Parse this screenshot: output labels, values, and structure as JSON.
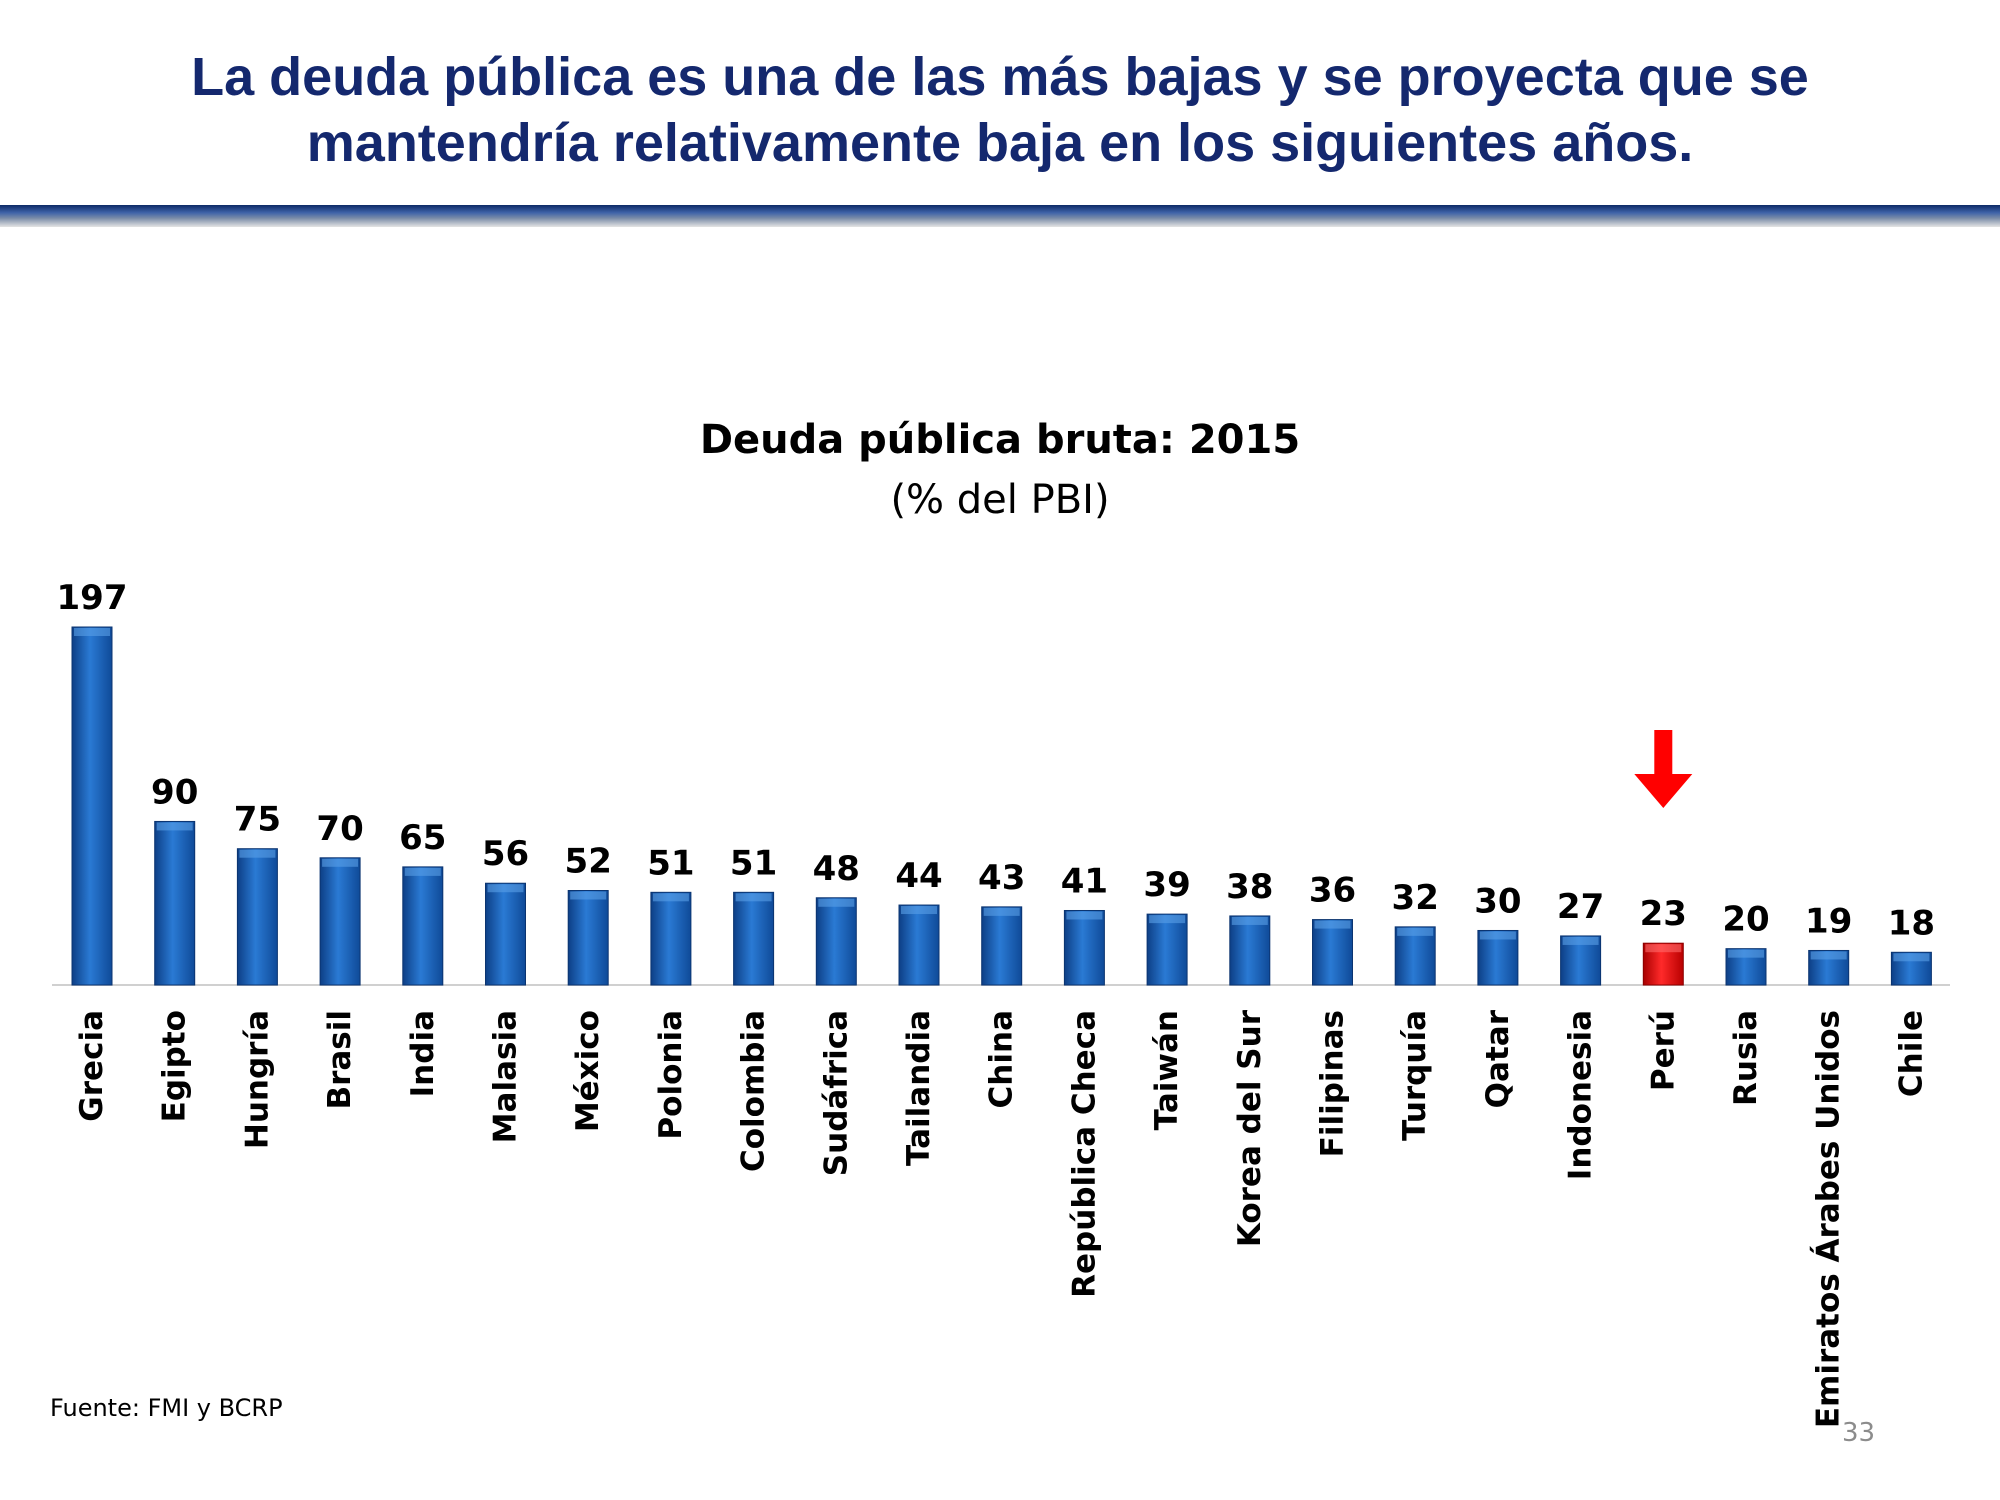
{
  "slide": {
    "title_line1": "La deuda pública es una de las más bajas y se proyecta que se",
    "title_line2": "mantendría relativamente baja en los siguientes años.",
    "source": "Fuente: FMI y BCRP",
    "page_number": "33"
  },
  "colors": {
    "title": "#14286e",
    "bar": "#1a63b8",
    "highlight_bar": "#e01010",
    "arrow": "#ff0000",
    "rule": "#2a4a8c"
  },
  "chart_data": {
    "type": "bar",
    "title": "Deuda pública bruta: 2015",
    "subtitle": "(% del PBI)",
    "categories": [
      "Grecia",
      "Egipto",
      "Hungría",
      "Brasil",
      "India",
      "Malasia",
      "México",
      "Polonia",
      "Colombia",
      "Sudáfrica",
      "Tailandia",
      "China",
      "República Checa",
      "Taiwán",
      "Korea del Sur",
      "Filipinas",
      "Turquía",
      "Qatar",
      "Indonesia",
      "Perú",
      "Rusia",
      "Emiratos Árabes Unidos",
      "Chile"
    ],
    "values": [
      197,
      90,
      75,
      70,
      65,
      56,
      52,
      51,
      51,
      48,
      44,
      43,
      41,
      39,
      38,
      36,
      32,
      30,
      27,
      23,
      20,
      19,
      18
    ],
    "highlight": "Perú",
    "highlight_marker": "arrow-down",
    "ylim": [
      0,
      197
    ],
    "grid": false,
    "legend": "none"
  }
}
